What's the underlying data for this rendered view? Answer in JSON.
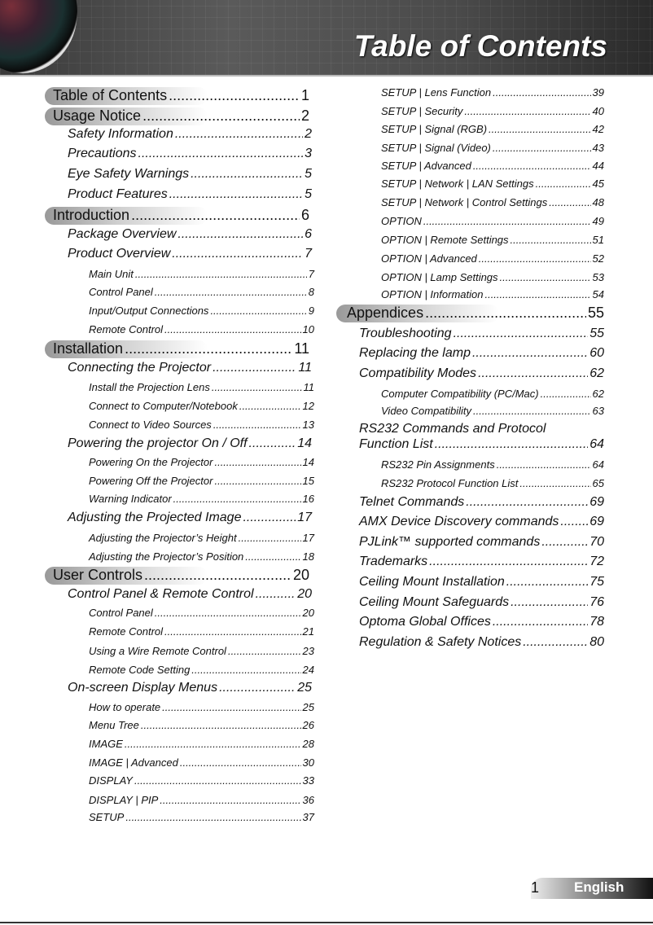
{
  "header": {
    "title": "Table of Contents"
  },
  "footer": {
    "page_number": "1",
    "language": "English"
  },
  "toc": {
    "left": [
      {
        "level": 1,
        "title": "Table of Contents",
        "page": "1"
      },
      {
        "level": 1,
        "title": "Usage Notice",
        "page": "2"
      },
      {
        "level": 2,
        "title": "Safety Information",
        "page": "2"
      },
      {
        "level": 2,
        "title": "Precautions",
        "page": "3"
      },
      {
        "level": 2,
        "title": "Eye Safety Warnings",
        "page": "5"
      },
      {
        "level": 2,
        "title": "Product Features",
        "page": "5"
      },
      {
        "level": 1,
        "title": "Introduction",
        "page": "6"
      },
      {
        "level": 2,
        "title": "Package Overview",
        "page": "6"
      },
      {
        "level": 2,
        "title": "Product Overview",
        "page": "7"
      },
      {
        "level": 3,
        "title": "Main Unit",
        "page": "7"
      },
      {
        "level": 3,
        "title": "Control Panel",
        "page": "8"
      },
      {
        "level": 3,
        "title": "Input/Output Connections",
        "page": "9"
      },
      {
        "level": 3,
        "title": "Remote Control",
        "page": "10"
      },
      {
        "level": 1,
        "title": "Installation",
        "page": "11"
      },
      {
        "level": 2,
        "title": "Connecting the Projector",
        "page": "11"
      },
      {
        "level": 3,
        "title": "Install the Projection Lens",
        "page": "11"
      },
      {
        "level": 3,
        "title": "Connect to Computer/Notebook",
        "page": "12"
      },
      {
        "level": 3,
        "title": "Connect to Video Sources",
        "page": "13"
      },
      {
        "level": 2,
        "title": "Powering the projector On / Off",
        "page": "14"
      },
      {
        "level": 3,
        "title": "Powering On the Projector",
        "page": "14"
      },
      {
        "level": 3,
        "title": "Powering Off the Projector",
        "page": "15"
      },
      {
        "level": 3,
        "title": "Warning Indicator",
        "page": "16"
      },
      {
        "level": 2,
        "title": "Adjusting the Projected Image",
        "page": "17"
      },
      {
        "level": 3,
        "title": "Adjusting the Projector’s Height",
        "page": "17"
      },
      {
        "level": 3,
        "title": "Adjusting the Projector’s Position",
        "page": "18"
      },
      {
        "level": 1,
        "title": "User Controls",
        "page": "20"
      },
      {
        "level": 2,
        "title": "Control Panel & Remote Control",
        "page": "20"
      },
      {
        "level": 3,
        "title": "Control Panel",
        "page": "20"
      },
      {
        "level": 3,
        "title": "Remote Control",
        "page": "21"
      },
      {
        "level": 3,
        "title": "Using a Wire Remote Control",
        "page": "23"
      },
      {
        "level": 3,
        "title": "Remote Code Setting",
        "page": "24"
      },
      {
        "level": 2,
        "title": "On-screen Display Menus",
        "page": "25"
      },
      {
        "level": 3,
        "title": "How to operate",
        "page": "25"
      },
      {
        "level": 3,
        "title": "Menu Tree",
        "page": "26"
      },
      {
        "level": 3,
        "title": "IMAGE",
        "page": "28"
      },
      {
        "level": 3,
        "title": "IMAGE | Advanced",
        "page": "30"
      },
      {
        "level": 3,
        "title": "DISPLAY",
        "page": "33"
      },
      {
        "level": 3,
        "title": "DISPLAY | PIP",
        "page": "36"
      },
      {
        "level": 3,
        "title": "SETUP",
        "page": "37"
      }
    ],
    "right": [
      {
        "level": 3,
        "title": "SETUP | Lens Function",
        "page": "39"
      },
      {
        "level": 3,
        "title": "SETUP | Security",
        "page": "40"
      },
      {
        "level": 3,
        "title": "SETUP | Signal (RGB)",
        "page": "42"
      },
      {
        "level": 3,
        "title": "SETUP | Signal (Video)",
        "page": "43"
      },
      {
        "level": 3,
        "title": "SETUP | Advanced",
        "page": "44"
      },
      {
        "level": 3,
        "title": "SETUP | Network  | LAN Settings",
        "page": "45"
      },
      {
        "level": 3,
        "title": "SETUP | Network  | Control Settings",
        "page": "48"
      },
      {
        "level": 3,
        "title": "OPTION",
        "page": "49"
      },
      {
        "level": 3,
        "title": "OPTION | Remote Settings",
        "page": "51"
      },
      {
        "level": 3,
        "title": "OPTION | Advanced",
        "page": "52"
      },
      {
        "level": 3,
        "title": "OPTION | Lamp Settings",
        "page": "53"
      },
      {
        "level": 3,
        "title": "OPTION | Information",
        "page": "54"
      },
      {
        "level": 1,
        "title": "Appendices",
        "page": "55"
      },
      {
        "level": 2,
        "title": "Troubleshooting",
        "page": "55"
      },
      {
        "level": 2,
        "title": "Replacing the lamp",
        "page": "60"
      },
      {
        "level": 2,
        "title": "Compatibility Modes",
        "page": "62"
      },
      {
        "level": 3,
        "title": "Computer Compatibility (PC/Mac)",
        "page": "62"
      },
      {
        "level": 3,
        "title": "Video Compatibility",
        "page": "63"
      },
      {
        "level": 2,
        "title": "RS232 Commands and Protocol",
        "page": ""
      },
      {
        "level": 2,
        "title": "Function List",
        "page": "64"
      },
      {
        "level": 3,
        "title": "RS232 Pin Assignments",
        "page": "64"
      },
      {
        "level": 3,
        "title": "RS232 Protocol Function List",
        "page": "65"
      },
      {
        "level": 2,
        "title": "Telnet Commands",
        "page": "69"
      },
      {
        "level": 2,
        "title": "AMX Device Discovery commands",
        "page": "69"
      },
      {
        "level": 2,
        "title": "PJLink™ supported commands",
        "page": "70"
      },
      {
        "level": 2,
        "title": "Trademarks",
        "page": "72"
      },
      {
        "level": 2,
        "title": "Ceiling Mount Installation",
        "page": "75"
      },
      {
        "level": 2,
        "title": "Ceiling Mount Safeguards",
        "page": "76"
      },
      {
        "level": 2,
        "title": "Optoma Global Offices",
        "page": "78"
      },
      {
        "level": 2,
        "title": "Regulation & Safety Notices",
        "page": "80"
      }
    ]
  }
}
